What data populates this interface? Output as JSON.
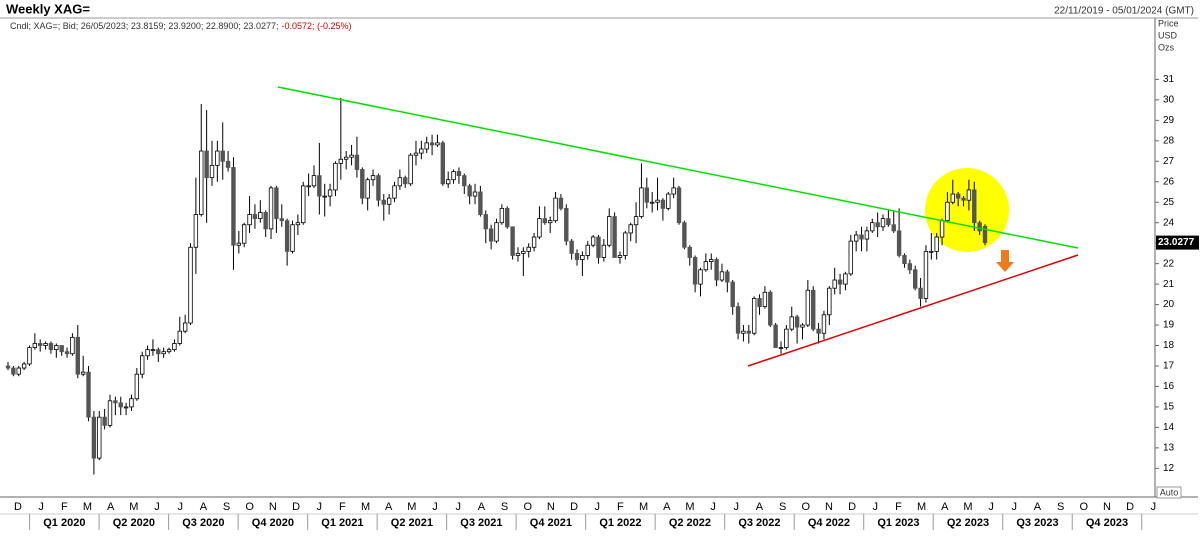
{
  "header": {
    "title": "Weekly XAG=",
    "date_range": "22/11/2019 - 05/01/2024 (GMT)",
    "info": "Cndl; XAG=; Bid; 26/05/2023; 23.8159; 23.9200; 22.8900; 23.0277;",
    "change": "-0.0572; (-0.25%)"
  },
  "chart_data": {
    "type": "candlestick",
    "up_color": "#ffffff",
    "down_color": "#555555",
    "outline_color": "#000000",
    "ylim": [
      10.6,
      34.0
    ],
    "yticks": [
      12,
      13,
      14,
      15,
      16,
      17,
      18,
      19,
      20,
      21,
      22,
      23,
      24,
      25,
      26,
      27,
      28,
      29,
      30,
      31
    ],
    "y_axis_labels": [
      "Price",
      "USD",
      "Ozs"
    ],
    "auto_label": "Auto",
    "months": [
      "D",
      "J",
      "F",
      "M",
      "A",
      "M",
      "J",
      "J",
      "A",
      "S",
      "O",
      "N",
      "D",
      "J",
      "F",
      "M",
      "A",
      "M",
      "J",
      "J",
      "A",
      "S",
      "O",
      "N",
      "D",
      "J",
      "F",
      "M",
      "A",
      "M",
      "J",
      "J",
      "A",
      "S",
      "O",
      "N",
      "D",
      "J",
      "F",
      "M",
      "A",
      "M",
      "J",
      "J",
      "A",
      "S",
      "O",
      "N",
      "D",
      "J"
    ],
    "quarters": [
      "Q1 2020",
      "Q2 2020",
      "Q3 2020",
      "Q4 2020",
      "Q1 2021",
      "Q2 2021",
      "Q3 2021",
      "Q4 2021",
      "Q1 2022",
      "Q2 2022",
      "Q3 2022",
      "Q4 2022",
      "Q1 2023",
      "Q2 2023",
      "Q3 2023",
      "Q4 2023"
    ],
    "ohlc": [
      [
        17.0,
        17.2,
        16.8,
        16.9
      ],
      [
        16.9,
        17.0,
        16.5,
        16.6
      ],
      [
        16.6,
        17.0,
        16.5,
        16.9
      ],
      [
        16.9,
        17.2,
        16.8,
        17.1
      ],
      [
        17.1,
        18.0,
        17.0,
        17.9
      ],
      [
        17.9,
        18.6,
        17.8,
        18.1
      ],
      [
        18.1,
        18.3,
        17.7,
        18.0
      ],
      [
        18.0,
        18.2,
        17.8,
        18.1
      ],
      [
        18.1,
        18.2,
        17.6,
        17.8
      ],
      [
        17.8,
        18.1,
        17.4,
        18.0
      ],
      [
        18.0,
        18.0,
        17.5,
        17.7
      ],
      [
        17.7,
        17.9,
        17.4,
        17.6
      ],
      [
        17.6,
        18.6,
        17.5,
        18.4
      ],
      [
        18.4,
        19.0,
        16.4,
        16.6
      ],
      [
        16.6,
        17.5,
        16.5,
        16.7
      ],
      [
        16.7,
        17.0,
        14.3,
        14.5
      ],
      [
        14.5,
        14.8,
        11.7,
        12.5
      ],
      [
        12.5,
        14.8,
        12.4,
        14.5
      ],
      [
        14.5,
        14.9,
        13.9,
        14.1
      ],
      [
        14.1,
        15.6,
        14.0,
        15.3
      ],
      [
        15.3,
        15.5,
        14.6,
        15.2
      ],
      [
        15.2,
        15.5,
        14.6,
        15.0
      ],
      [
        15.0,
        15.2,
        14.6,
        15.0
      ],
      [
        15.0,
        15.6,
        14.8,
        15.4
      ],
      [
        15.4,
        16.9,
        15.3,
        16.6
      ],
      [
        16.6,
        17.7,
        16.4,
        17.5
      ],
      [
        17.5,
        18.0,
        17.3,
        17.8
      ],
      [
        17.8,
        18.3,
        17.5,
        17.8
      ],
      [
        17.8,
        17.9,
        17.2,
        17.6
      ],
      [
        17.6,
        17.9,
        17.4,
        17.7
      ],
      [
        17.7,
        17.9,
        17.6,
        17.8
      ],
      [
        17.8,
        18.3,
        17.7,
        18.1
      ],
      [
        18.1,
        19.4,
        18.0,
        18.7
      ],
      [
        18.7,
        19.5,
        18.6,
        19.1
      ],
      [
        19.1,
        23.0,
        19.0,
        22.8
      ],
      [
        22.8,
        26.2,
        21.5,
        24.4
      ],
      [
        24.4,
        29.8,
        24.3,
        27.5
      ],
      [
        27.5,
        29.5,
        24.0,
        26.2
      ],
      [
        26.2,
        28.0,
        25.8,
        26.8
      ],
      [
        26.8,
        28.0,
        26.0,
        27.5
      ],
      [
        27.5,
        28.9,
        26.1,
        27.0
      ],
      [
        27.0,
        27.5,
        26.5,
        26.7
      ],
      [
        26.7,
        27.2,
        21.7,
        22.9
      ],
      [
        22.9,
        23.6,
        22.5,
        23.0
      ],
      [
        23.0,
        24.0,
        22.8,
        23.9
      ],
      [
        23.9,
        25.3,
        23.5,
        24.4
      ],
      [
        24.4,
        24.9,
        23.7,
        24.2
      ],
      [
        24.2,
        25.1,
        24.0,
        24.5
      ],
      [
        24.5,
        24.6,
        23.3,
        23.7
      ],
      [
        23.7,
        25.8,
        23.2,
        25.7
      ],
      [
        25.7,
        25.8,
        23.5,
        24.2
      ],
      [
        24.2,
        24.9,
        23.8,
        24.1
      ],
      [
        24.1,
        24.2,
        21.9,
        22.6
      ],
      [
        22.6,
        24.1,
        22.5,
        23.9
      ],
      [
        23.9,
        24.4,
        23.4,
        24.0
      ],
      [
        24.0,
        26.0,
        23.9,
        25.8
      ],
      [
        25.8,
        26.4,
        25.3,
        25.8
      ],
      [
        25.8,
        26.8,
        25.7,
        26.3
      ],
      [
        26.3,
        27.9,
        24.4,
        25.3
      ],
      [
        25.3,
        25.9,
        24.3,
        25.3
      ],
      [
        25.3,
        25.9,
        24.8,
        25.6
      ],
      [
        25.6,
        27.0,
        25.3,
        26.9
      ],
      [
        26.9,
        30.1,
        26.1,
        27.1
      ],
      [
        27.1,
        27.5,
        26.6,
        27.2
      ],
      [
        27.2,
        27.8,
        26.8,
        27.3
      ],
      [
        27.3,
        28.2,
        26.2,
        26.6
      ],
      [
        26.6,
        26.7,
        24.9,
        25.2
      ],
      [
        25.2,
        26.2,
        24.6,
        26.1
      ],
      [
        26.1,
        26.6,
        25.8,
        26.3
      ],
      [
        26.3,
        26.4,
        24.8,
        25.1
      ],
      [
        25.1,
        25.4,
        24.1,
        24.9
      ],
      [
        24.9,
        25.4,
        24.4,
        25.2
      ],
      [
        25.2,
        26.0,
        25.0,
        25.8
      ],
      [
        25.8,
        26.6,
        25.6,
        26.2
      ],
      [
        26.2,
        26.3,
        25.7,
        25.9
      ],
      [
        25.9,
        27.4,
        25.8,
        27.3
      ],
      [
        27.3,
        28.0,
        26.8,
        27.4
      ],
      [
        27.4,
        28.0,
        27.1,
        27.6
      ],
      [
        27.6,
        28.2,
        27.4,
        27.9
      ],
      [
        27.9,
        28.3,
        27.3,
        27.8
      ],
      [
        27.8,
        28.3,
        27.7,
        27.9
      ],
      [
        27.9,
        28.0,
        25.8,
        25.9
      ],
      [
        25.9,
        26.5,
        25.7,
        26.1
      ],
      [
        26.1,
        26.6,
        25.9,
        26.5
      ],
      [
        26.5,
        26.7,
        25.9,
        26.3
      ],
      [
        26.3,
        26.4,
        25.4,
        25.8
      ],
      [
        25.8,
        25.9,
        24.9,
        25.3
      ],
      [
        25.3,
        25.9,
        24.9,
        25.5
      ],
      [
        25.5,
        25.8,
        24.3,
        24.4
      ],
      [
        24.4,
        24.6,
        23.0,
        23.7
      ],
      [
        23.7,
        23.9,
        22.7,
        23.1
      ],
      [
        23.1,
        24.2,
        23.0,
        24.0
      ],
      [
        24.0,
        24.9,
        23.9,
        24.7
      ],
      [
        24.7,
        24.8,
        23.7,
        23.8
      ],
      [
        23.8,
        23.8,
        22.2,
        22.4
      ],
      [
        22.4,
        22.8,
        22.1,
        22.5
      ],
      [
        22.5,
        22.8,
        21.4,
        22.6
      ],
      [
        22.6,
        23.0,
        22.3,
        22.8
      ],
      [
        22.8,
        23.5,
        22.6,
        23.3
      ],
      [
        23.3,
        24.8,
        23.2,
        24.2
      ],
      [
        24.2,
        24.8,
        23.9,
        24.0
      ],
      [
        24.0,
        24.3,
        23.5,
        24.1
      ],
      [
        24.1,
        25.5,
        24.0,
        25.2
      ],
      [
        25.2,
        25.4,
        24.6,
        24.7
      ],
      [
        24.7,
        24.9,
        22.9,
        23.1
      ],
      [
        23.1,
        23.2,
        22.2,
        22.5
      ],
      [
        22.5,
        22.7,
        21.9,
        22.2
      ],
      [
        22.2,
        22.6,
        21.4,
        22.4
      ],
      [
        22.4,
        23.1,
        22.2,
        22.9
      ],
      [
        22.9,
        23.4,
        22.8,
        23.3
      ],
      [
        23.3,
        23.4,
        22.0,
        22.3
      ],
      [
        22.3,
        23.2,
        22.1,
        22.9
      ],
      [
        22.9,
        24.7,
        22.8,
        24.3
      ],
      [
        24.3,
        24.5,
        22.3,
        22.3
      ],
      [
        22.3,
        22.6,
        22.0,
        22.4
      ],
      [
        22.4,
        23.6,
        22.2,
        23.5
      ],
      [
        23.5,
        24.0,
        23.1,
        23.9
      ],
      [
        23.9,
        25.0,
        23.0,
        24.3
      ],
      [
        24.3,
        26.9,
        24.2,
        25.7
      ],
      [
        25.7,
        26.2,
        24.7,
        25.0
      ],
      [
        25.0,
        25.5,
        24.5,
        25.0
      ],
      [
        25.0,
        26.2,
        24.6,
        25.1
      ],
      [
        25.1,
        25.2,
        24.1,
        24.7
      ],
      [
        24.7,
        25.5,
        24.6,
        25.4
      ],
      [
        25.4,
        26.2,
        25.2,
        25.7
      ],
      [
        25.7,
        25.8,
        23.9,
        24.0
      ],
      [
        24.0,
        24.1,
        22.7,
        22.8
      ],
      [
        22.8,
        22.9,
        21.9,
        22.3
      ],
      [
        22.3,
        22.4,
        20.6,
        21.0
      ],
      [
        21.0,
        21.8,
        20.4,
        21.7
      ],
      [
        21.7,
        22.5,
        21.6,
        22.1
      ],
      [
        22.1,
        22.5,
        21.7,
        22.2
      ],
      [
        22.2,
        22.3,
        20.9,
        21.2
      ],
      [
        21.2,
        22.0,
        21.1,
        21.6
      ],
      [
        21.6,
        21.7,
        20.6,
        21.1
      ],
      [
        21.1,
        21.2,
        19.5,
        19.9
      ],
      [
        19.9,
        20.1,
        18.3,
        18.6
      ],
      [
        18.6,
        19.0,
        18.2,
        18.7
      ],
      [
        18.7,
        19.0,
        18.1,
        18.6
      ],
      [
        18.6,
        20.4,
        18.5,
        20.3
      ],
      [
        20.3,
        20.5,
        19.5,
        19.9
      ],
      [
        19.9,
        20.9,
        19.8,
        20.6
      ],
      [
        20.6,
        20.7,
        18.9,
        19.0
      ],
      [
        19.0,
        19.1,
        17.9,
        17.9
      ],
      [
        17.9,
        18.2,
        17.6,
        17.9
      ],
      [
        17.9,
        19.0,
        17.8,
        18.8
      ],
      [
        18.8,
        19.9,
        18.7,
        19.4
      ],
      [
        19.4,
        19.5,
        18.1,
        18.9
      ],
      [
        18.9,
        19.1,
        18.3,
        19.0
      ],
      [
        19.0,
        21.2,
        18.9,
        20.7
      ],
      [
        20.7,
        20.9,
        18.7,
        18.8
      ],
      [
        18.8,
        19.1,
        18.1,
        18.6
      ],
      [
        18.6,
        19.7,
        18.3,
        19.5
      ],
      [
        19.5,
        20.9,
        19.0,
        20.8
      ],
      [
        20.8,
        21.8,
        20.5,
        21.2
      ],
      [
        21.2,
        21.5,
        20.5,
        21.0
      ],
      [
        21.0,
        21.6,
        20.7,
        21.5
      ],
      [
        21.5,
        23.4,
        21.4,
        23.1
      ],
      [
        23.1,
        23.6,
        22.6,
        23.4
      ],
      [
        23.4,
        23.8,
        22.6,
        23.2
      ],
      [
        23.2,
        23.8,
        22.6,
        23.6
      ],
      [
        23.6,
        24.2,
        23.5,
        24.0
      ],
      [
        24.0,
        24.5,
        23.3,
        23.8
      ],
      [
        23.8,
        24.4,
        23.6,
        24.2
      ],
      [
        24.2,
        24.6,
        23.8,
        23.9
      ],
      [
        23.9,
        24.6,
        23.5,
        23.6
      ],
      [
        23.6,
        24.7,
        22.3,
        22.4
      ],
      [
        22.4,
        22.5,
        21.8,
        22.0
      ],
      [
        22.0,
        22.2,
        21.5,
        21.7
      ],
      [
        21.7,
        21.9,
        20.7,
        20.8
      ],
      [
        20.8,
        21.3,
        19.9,
        20.3
      ],
      [
        20.3,
        22.9,
        20.1,
        22.6
      ],
      [
        22.6,
        23.5,
        22.2,
        22.6
      ],
      [
        22.6,
        23.5,
        22.2,
        23.3
      ],
      [
        23.3,
        24.2,
        22.9,
        24.1
      ],
      [
        24.1,
        25.5,
        24.0,
        25.0
      ],
      [
        25.0,
        26.1,
        24.9,
        25.4
      ],
      [
        25.4,
        25.5,
        24.8,
        25.2
      ],
      [
        25.2,
        25.3,
        24.8,
        25.1
      ],
      [
        25.1,
        26.1,
        24.6,
        25.6
      ],
      [
        25.6,
        26.0,
        23.6,
        24.0
      ],
      [
        24.0,
        24.1,
        23.4,
        23.6
      ],
      [
        23.8159,
        23.92,
        22.89,
        23.0277
      ]
    ]
  }
}
